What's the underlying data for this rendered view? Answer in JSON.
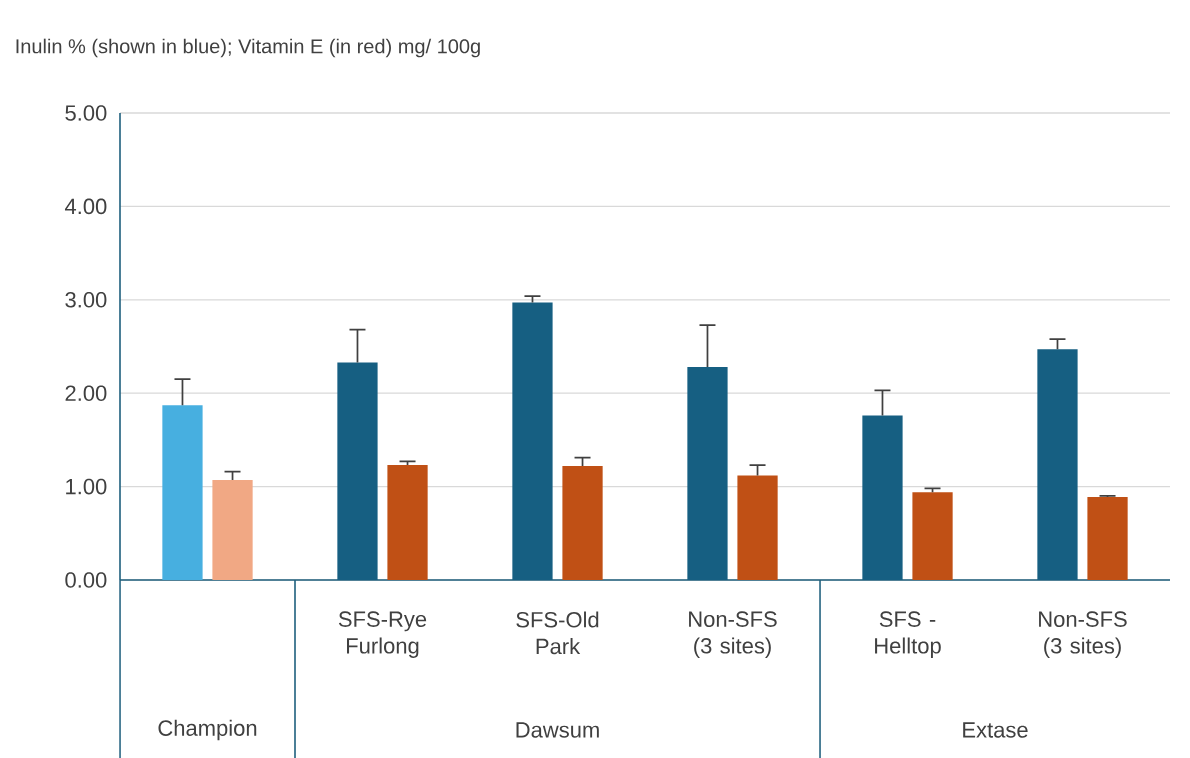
{
  "chart_data": {
    "type": "bar",
    "title": "Inulin % (shown in blue); Vitamin E (in red)   mg/ 100g",
    "categories": [
      null,
      "SFS-Rye Furlong",
      "SFS-Old Park",
      "Non-SFS (3 sites)",
      "SFS - Helltop",
      "Non-SFS (3 sites)"
    ],
    "series": [
      {
        "colors": [
          "#47afe0",
          "#165f82",
          "#165f82",
          "#165f82",
          "#165f82",
          "#165f82"
        ],
        "values": [
          1.87,
          2.33,
          2.97,
          2.28,
          1.76,
          2.47
        ],
        "errors": [
          [
            1.87,
            2.15
          ],
          [
            2.33,
            2.68
          ],
          [
            2.97,
            3.04
          ],
          [
            2.28,
            2.73
          ],
          [
            1.76,
            2.03
          ],
          [
            2.47,
            2.58
          ]
        ]
      },
      {
        "colors": [
          "#f1a884",
          "#c05015",
          "#c05015",
          "#c05015",
          "#c05015",
          "#c05015"
        ],
        "values": [
          1.07,
          1.23,
          1.22,
          1.12,
          0.94,
          0.89
        ],
        "errors": [
          [
            1.07,
            1.16
          ],
          [
            1.23,
            1.27
          ],
          [
            1.22,
            1.31
          ],
          [
            1.12,
            1.23
          ],
          [
            0.94,
            0.98
          ],
          [
            0.89,
            0.9
          ]
        ]
      }
    ],
    "ylim": [
      0,
      5
    ],
    "yticks": [
      {
        "value": 0,
        "label": "0.00"
      },
      {
        "value": 1,
        "label": "1.00"
      },
      {
        "value": 2,
        "label": "2.00"
      },
      {
        "value": 3,
        "label": "3.00"
      },
      {
        "value": 4,
        "label": "4.00"
      },
      {
        "value": 5,
        "label": "5.00"
      }
    ],
    "grid": "y",
    "annotations": [
      "Champion",
      "Dawsum",
      "Extase"
    ]
  }
}
